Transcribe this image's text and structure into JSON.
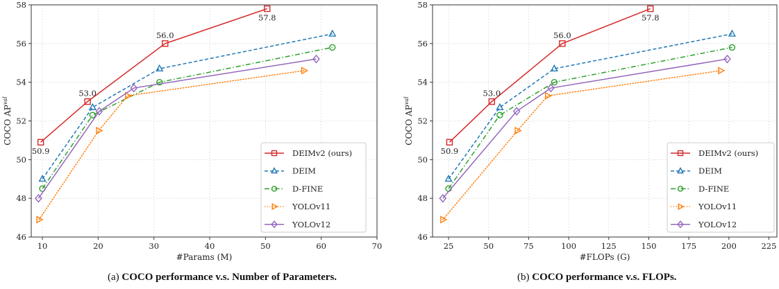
{
  "chart_data": [
    {
      "id": "a",
      "type": "line",
      "caption_prefix": "(a)",
      "caption": "COCO performance v.s. Number of Parameters.",
      "xlabel": "#Params (M)",
      "ylabel": "COCO AP",
      "ylabel_sup": "val",
      "xlim": [
        8,
        70
      ],
      "ylim": [
        46,
        58
      ],
      "xticks": [
        10,
        20,
        30,
        40,
        50,
        60,
        70
      ],
      "yticks": [
        46,
        48,
        50,
        52,
        54,
        56,
        58
      ],
      "grid": true,
      "legend_position": "lower-right",
      "series": [
        {
          "name": "DEIMv2 (ours)",
          "color": "#d62728",
          "marker": "square",
          "line": "solid",
          "x": [
            9.7,
            18.1,
            32.0,
            50.3
          ],
          "y": [
            50.9,
            53.0,
            56.0,
            57.8
          ]
        },
        {
          "name": "DEIM",
          "color": "#1f77b4",
          "marker": "triangle-up",
          "line": "dashed",
          "x": [
            10.0,
            19.0,
            31.0,
            62.0
          ],
          "y": [
            49.0,
            52.7,
            54.7,
            56.5
          ]
        },
        {
          "name": "D-FINE",
          "color": "#2ca02c",
          "marker": "circle",
          "line": "dashdot",
          "x": [
            10.0,
            19.0,
            31.0,
            62.0
          ],
          "y": [
            48.5,
            52.3,
            54.0,
            55.8
          ]
        },
        {
          "name": "YOLOv11",
          "color": "#ff7f0e",
          "marker": "triangle-right",
          "line": "dotted",
          "x": [
            9.4,
            20.1,
            25.3,
            56.9
          ],
          "y": [
            46.9,
            51.5,
            53.3,
            54.6
          ]
        },
        {
          "name": "YOLOv12",
          "color": "#9467bd",
          "marker": "diamond",
          "line": "solid",
          "x": [
            9.3,
            20.2,
            26.4,
            59.1
          ],
          "y": [
            48.0,
            52.5,
            53.7,
            55.2
          ]
        }
      ],
      "annotations": [
        {
          "text": "50.9",
          "x": 9.7,
          "y": 50.9,
          "pos": "below"
        },
        {
          "text": "53.0",
          "x": 18.1,
          "y": 53.0,
          "pos": "above"
        },
        {
          "text": "56.0",
          "x": 32.0,
          "y": 56.0,
          "pos": "above"
        },
        {
          "text": "57.8",
          "x": 50.3,
          "y": 57.8,
          "pos": "below"
        }
      ]
    },
    {
      "id": "b",
      "type": "line",
      "caption_prefix": "(b)",
      "caption": "COCO performance v.s. FLOPs.",
      "xlabel": "#FLOPs (G)",
      "ylabel": "COCO AP",
      "ylabel_sup": "val",
      "xlim": [
        15,
        230
      ],
      "ylim": [
        46,
        58
      ],
      "xticks": [
        25,
        50,
        75,
        100,
        125,
        150,
        175,
        200,
        225
      ],
      "yticks": [
        46,
        48,
        50,
        52,
        54,
        56,
        58
      ],
      "grid": true,
      "legend_position": "lower-right",
      "series": [
        {
          "name": "DEIMv2 (ours)",
          "color": "#d62728",
          "marker": "square",
          "line": "solid",
          "x": [
            25.6,
            52.0,
            96.0,
            151.0
          ],
          "y": [
            50.9,
            53.0,
            56.0,
            57.8
          ]
        },
        {
          "name": "DEIM",
          "color": "#1f77b4",
          "marker": "triangle-up",
          "line": "dashed",
          "x": [
            25.0,
            57.0,
            91.0,
            202.0
          ],
          "y": [
            49.0,
            52.7,
            54.7,
            56.5
          ]
        },
        {
          "name": "D-FINE",
          "color": "#2ca02c",
          "marker": "circle",
          "line": "dashdot",
          "x": [
            25.0,
            57.0,
            91.0,
            202.0
          ],
          "y": [
            48.5,
            52.3,
            54.0,
            55.8
          ]
        },
        {
          "name": "YOLOv11",
          "color": "#ff7f0e",
          "marker": "triangle-right",
          "line": "dotted",
          "x": [
            21.5,
            68.0,
            86.9,
            194.9
          ],
          "y": [
            46.9,
            51.5,
            53.3,
            54.6
          ]
        },
        {
          "name": "YOLOv12",
          "color": "#9467bd",
          "marker": "diamond",
          "line": "solid",
          "x": [
            21.4,
            67.5,
            88.9,
            199.0
          ],
          "y": [
            48.0,
            52.5,
            53.7,
            55.2
          ]
        }
      ],
      "annotations": [
        {
          "text": "50.9",
          "x": 25.6,
          "y": 50.9,
          "pos": "below"
        },
        {
          "text": "53.0",
          "x": 52.0,
          "y": 53.0,
          "pos": "above"
        },
        {
          "text": "56.0",
          "x": 96.0,
          "y": 56.0,
          "pos": "above"
        },
        {
          "text": "57.8",
          "x": 151.0,
          "y": 57.8,
          "pos": "below"
        }
      ]
    }
  ]
}
